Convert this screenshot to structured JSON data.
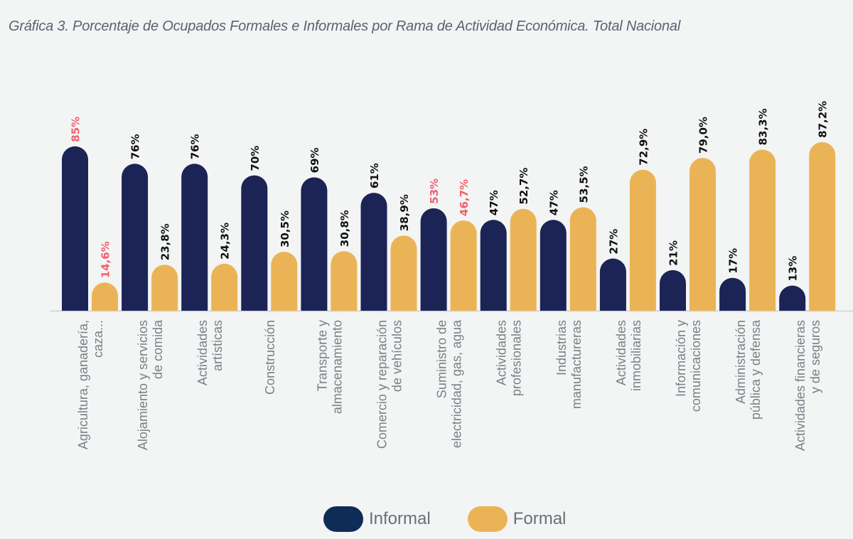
{
  "chart_data": {
    "type": "bar",
    "title": "Gráfica 3. Porcentaje de Ocupados Formales e Informales por Rama de Actividad Económica. Total Nacional",
    "xlabel": "",
    "ylabel": "",
    "ylim": [
      0,
      100
    ],
    "grid": false,
    "legend_position": "bottom-center",
    "categories": [
      [
        "Agricultura, ganadería,",
        "caza..."
      ],
      [
        "Alojamiento y servicios",
        "de comida"
      ],
      [
        "Actividades",
        "artísticas"
      ],
      [
        "Construcción"
      ],
      [
        "Transporte y",
        "almacenamiento"
      ],
      [
        "Comercio y reparación",
        "de vehículos"
      ],
      [
        "Suministro de",
        "electricidad, gas, agua"
      ],
      [
        "Actividades",
        "profesionales"
      ],
      [
        "Industrias",
        "manufactureras"
      ],
      [
        "Actividades",
        "inmobiliarias"
      ],
      [
        "Información y",
        "comunicaciones"
      ],
      [
        "Administración",
        "pública y defensa"
      ],
      [
        "Actividades financieras",
        "y de seguros"
      ]
    ],
    "series": [
      {
        "name": "Informal",
        "color": "#1b2455",
        "values": [
          85,
          76,
          76,
          70,
          69,
          61,
          53,
          47,
          47,
          27,
          21,
          17,
          13
        ],
        "labels": [
          "85%",
          "76%",
          "76%",
          "70%",
          "69%",
          "61%",
          "53%",
          "47%",
          "47%",
          "27%",
          "21%",
          "17%",
          "13%"
        ],
        "highlight": [
          true,
          false,
          false,
          false,
          false,
          false,
          true,
          false,
          false,
          false,
          false,
          false,
          false
        ]
      },
      {
        "name": "Formal",
        "color": "#eab456",
        "values": [
          14.6,
          23.8,
          24.3,
          30.5,
          30.8,
          38.9,
          46.7,
          52.7,
          53.5,
          72.9,
          79.0,
          83.3,
          87.2
        ],
        "labels": [
          "14,6%",
          "23,8%",
          "24,3%",
          "30,5%",
          "30,8%",
          "38,9%",
          "46,7%",
          "52,7%",
          "53,5%",
          "72,9%",
          "79,0%",
          "83,3%",
          "87,2%"
        ],
        "highlight": [
          true,
          false,
          false,
          false,
          false,
          false,
          true,
          false,
          false,
          false,
          false,
          false,
          false
        ]
      }
    ],
    "label_color": "#111111",
    "highlight_label_color": "#f0606a"
  },
  "legend": {
    "items": [
      {
        "label": "Informal",
        "color": "#0f2c57"
      },
      {
        "label": "Formal",
        "color": "#eab456"
      }
    ]
  }
}
